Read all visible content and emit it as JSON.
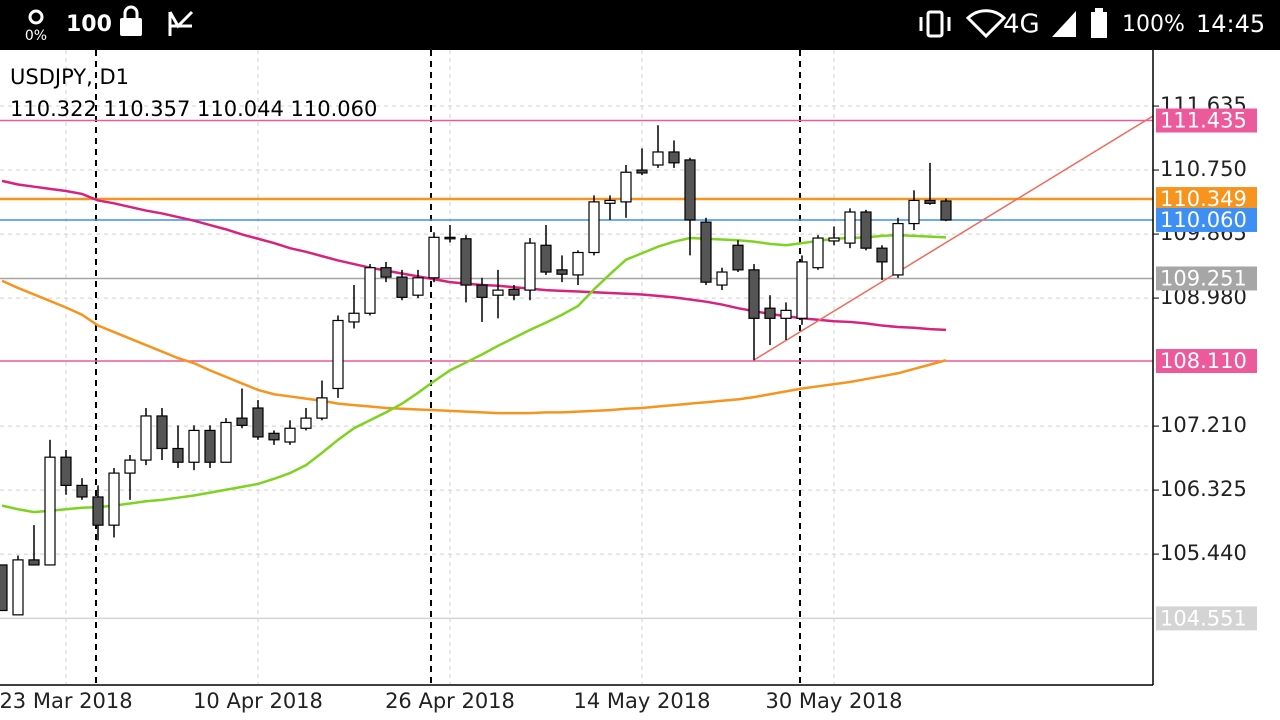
{
  "status_bar": {
    "battery_saver": "0%",
    "notification": "100",
    "network": "4G",
    "battery": "100%",
    "time": "14:45"
  },
  "chart_data": {
    "type": "candlestick",
    "title": "USDJPY, D1",
    "subtitle": "110.322 110.357 110.044 110.060",
    "categories": [
      null,
      null,
      null,
      null,
      "23 Mar 2018",
      null,
      null,
      null,
      null,
      null,
      null,
      null,
      null,
      null,
      null,
      null,
      "10 Apr 2018",
      null,
      null,
      null,
      null,
      null,
      null,
      null,
      null,
      null,
      null,
      null,
      "26 Apr 2018",
      null,
      null,
      null,
      null,
      null,
      null,
      null,
      null,
      null,
      null,
      null,
      "14 May 2018",
      null,
      null,
      null,
      null,
      null,
      null,
      null,
      null,
      null,
      null,
      null,
      "30 May 2018",
      null,
      null,
      null,
      null,
      null,
      null,
      null
    ],
    "open": [
      105.29,
      104.6,
      105.36,
      105.29,
      106.78,
      106.39,
      106.23,
      105.84,
      106.56,
      106.74,
      107.35,
      106.9,
      106.71,
      107.15,
      106.71,
      107.32,
      107.46,
      107.11,
      106.99,
      107.18,
      107.32,
      107.73,
      108.65,
      108.77,
      109.4,
      109.27,
      109.02,
      109.26,
      109.82,
      109.8,
      109.16,
      109.02,
      109.1,
      109.09,
      109.71,
      109.37,
      109.3,
      109.61,
      110.29,
      110.31,
      110.75,
      110.82,
      111.0,
      110.89,
      110.03,
      109.16,
      109.71,
      109.37,
      108.84,
      108.7,
      108.7,
      109.4,
      109.77,
      109.74,
      110.17,
      109.67,
      109.3,
      110.01,
      110.33,
      110.322
    ],
    "high": [
      105.29,
      105.42,
      105.84,
      107.02,
      106.88,
      106.49,
      106.39,
      106.63,
      106.81,
      107.46,
      107.46,
      107.22,
      107.22,
      107.22,
      107.32,
      107.73,
      107.57,
      107.15,
      107.29,
      107.46,
      107.84,
      108.74,
      109.16,
      109.45,
      109.48,
      109.37,
      109.37,
      109.89,
      109.99,
      109.85,
      109.26,
      109.37,
      109.16,
      109.81,
      109.99,
      109.57,
      109.64,
      110.4,
      110.4,
      110.82,
      111.05,
      111.37,
      111.16,
      110.92,
      110.09,
      109.4,
      109.78,
      109.45,
      109.02,
      108.92,
      109.57,
      109.85,
      109.97,
      110.22,
      110.2,
      109.71,
      110.09,
      110.47,
      110.85,
      110.357
    ],
    "low": [
      104.66,
      104.6,
      105.29,
      105.29,
      106.26,
      106.19,
      105.63,
      105.67,
      106.19,
      106.67,
      106.74,
      106.63,
      106.6,
      106.63,
      106.71,
      107.18,
      107.02,
      106.95,
      106.95,
      107.15,
      107.29,
      107.6,
      108.56,
      108.74,
      109.2,
      108.95,
      108.98,
      109.2,
      109.75,
      108.92,
      108.65,
      108.7,
      108.95,
      108.95,
      109.3,
      109.2,
      109.16,
      109.57,
      110.06,
      110.09,
      110.68,
      110.78,
      110.78,
      109.57,
      109.16,
      109.09,
      109.34,
      108.12,
      108.33,
      108.4,
      108.61,
      109.37,
      109.71,
      109.67,
      109.64,
      109.23,
      109.26,
      109.92,
      110.27,
      110.044
    ],
    "close": [
      104.66,
      105.36,
      105.29,
      106.78,
      106.39,
      106.23,
      105.84,
      106.56,
      106.74,
      107.35,
      106.9,
      106.71,
      107.15,
      106.71,
      107.26,
      107.22,
      107.06,
      107.02,
      107.18,
      107.32,
      107.6,
      108.67,
      108.77,
      109.4,
      109.27,
      108.99,
      109.26,
      109.82,
      109.8,
      109.16,
      108.99,
      109.09,
      109.02,
      109.74,
      109.34,
      109.31,
      109.61,
      110.31,
      110.33,
      110.72,
      110.71,
      111.0,
      110.85,
      110.06,
      109.2,
      109.34,
      109.37,
      108.7,
      108.7,
      108.81,
      109.48,
      109.81,
      109.81,
      110.17,
      109.67,
      109.48,
      110.01,
      110.33,
      110.29,
      110.06
    ],
    "up_color": "#ffffff",
    "down_color": "#555555",
    "lines": [
      {
        "color": "#d8237e",
        "values": [
          110.6,
          110.55,
          110.52,
          110.49,
          110.46,
          110.42,
          110.33,
          110.29,
          110.24,
          110.19,
          110.15,
          110.1,
          110.05,
          109.99,
          109.93,
          109.86,
          109.8,
          109.74,
          109.67,
          109.62,
          109.56,
          109.5,
          109.45,
          109.4,
          109.36,
          109.32,
          109.28,
          109.24,
          109.2,
          109.18,
          109.16,
          109.15,
          109.13,
          109.11,
          109.09,
          109.08,
          109.07,
          109.06,
          109.05,
          109.04,
          109.03,
          109.01,
          108.99,
          108.96,
          108.93,
          108.89,
          108.84,
          108.8,
          108.76,
          108.73,
          108.7,
          108.68,
          108.66,
          108.65,
          108.63,
          108.6,
          108.58,
          108.57,
          108.55,
          108.54
        ]
      },
      {
        "color": "#f7941d",
        "values": [
          109.22,
          109.12,
          109.03,
          108.94,
          108.85,
          108.75,
          108.6,
          108.51,
          108.42,
          108.33,
          108.24,
          108.15,
          108.08,
          107.98,
          107.89,
          107.8,
          107.71,
          107.65,
          107.62,
          107.59,
          107.56,
          107.52,
          107.5,
          107.48,
          107.46,
          107.45,
          107.44,
          107.43,
          107.42,
          107.41,
          107.4,
          107.39,
          107.39,
          107.39,
          107.4,
          107.4,
          107.41,
          107.42,
          107.43,
          107.45,
          107.46,
          107.48,
          107.5,
          107.52,
          107.54,
          107.56,
          107.58,
          107.61,
          107.65,
          107.69,
          107.73,
          107.76,
          107.79,
          107.82,
          107.86,
          107.9,
          107.94,
          108.0,
          108.06,
          108.12
        ]
      },
      {
        "color": "#7ed321",
        "values": [
          106.11,
          106.06,
          106.02,
          106.04,
          106.06,
          106.08,
          106.09,
          106.11,
          106.14,
          106.17,
          106.19,
          106.22,
          106.25,
          106.29,
          106.33,
          106.37,
          106.41,
          106.48,
          106.56,
          106.67,
          106.84,
          107.02,
          107.18,
          107.29,
          107.4,
          107.52,
          107.67,
          107.83,
          107.98,
          108.09,
          108.2,
          108.32,
          108.43,
          108.54,
          108.64,
          108.75,
          108.87,
          109.1,
          109.31,
          109.51,
          109.6,
          109.69,
          109.76,
          109.81,
          109.8,
          109.79,
          109.78,
          109.76,
          109.73,
          109.71,
          109.74,
          109.77,
          109.8,
          109.81,
          109.82,
          109.84,
          109.85,
          109.84,
          109.83,
          109.82
        ]
      }
    ],
    "levels": [
      {
        "value": 111.435,
        "label": "111.435",
        "color": "#ec5a9c"
      },
      {
        "value": 110.349,
        "label": "110.349",
        "color": "#f7941d"
      },
      {
        "value": 110.06,
        "label": "110.060",
        "color": "#3d8ef5"
      },
      {
        "value": 109.251,
        "label": "109.251",
        "color": "#a6a6a6"
      },
      {
        "value": 108.11,
        "label": "108.110",
        "color": "#ec5a9c"
      },
      {
        "value": 104.551,
        "label": "104.551",
        "color": "#d4d4d4"
      }
    ],
    "ylim": [
      103.63,
      112.41
    ],
    "yticks": [
      111.635,
      {
        "value": 110.75,
        "label": "110.750"
      },
      109.865,
      {
        "value": 108.98,
        "label": "108.980"
      },
      {
        "value": 107.21,
        "label": "107.210"
      },
      106.325,
      {
        "value": 105.44,
        "label": "105.440"
      }
    ],
    "grid": true
  }
}
